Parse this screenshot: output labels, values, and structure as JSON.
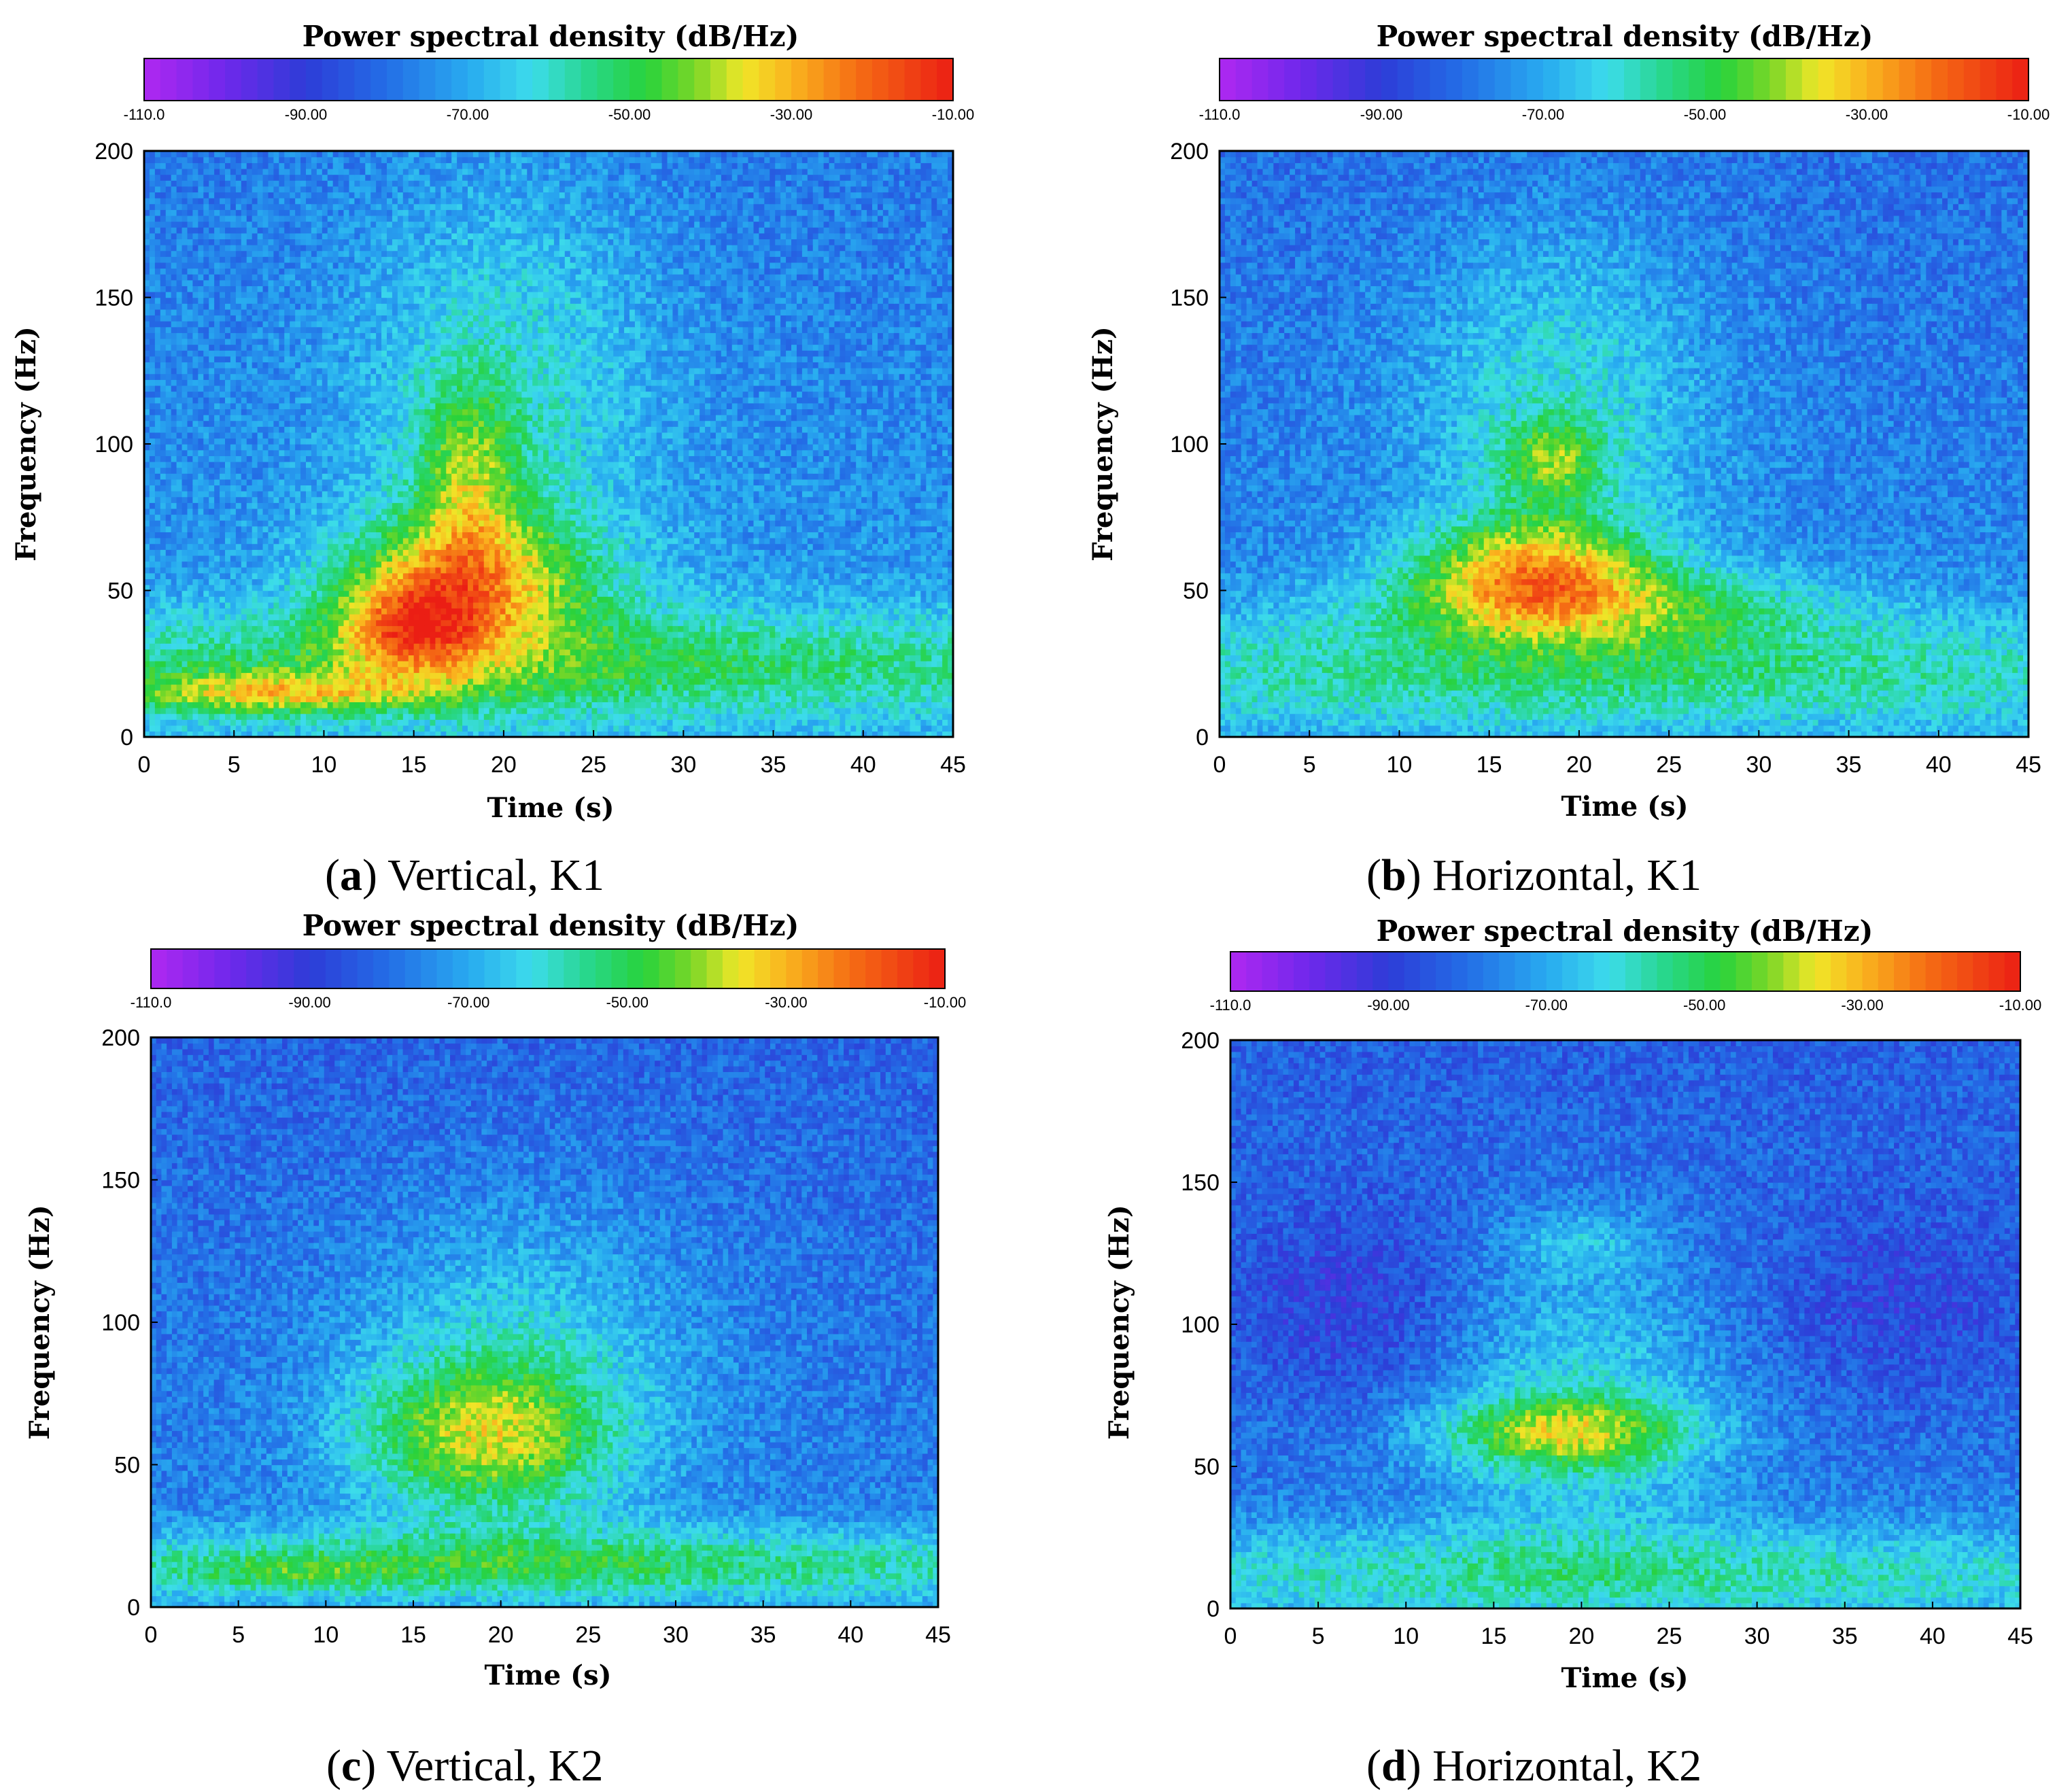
{
  "figure": {
    "panels": [
      {
        "letter": "a",
        "caption": ") Vertical, K1",
        "open": "("
      },
      {
        "letter": "b",
        "caption": ") Horizontal, K1",
        "open": "("
      },
      {
        "letter": "c",
        "caption": ") Vertical, K2",
        "open": "("
      },
      {
        "letter": "d",
        "caption": ") Horizontal, K2",
        "open": "("
      }
    ]
  },
  "chart_data": [
    {
      "type": "heatmap",
      "panel": "a",
      "title": "Power spectral density (dB/Hz)",
      "xlabel": "Time (s)",
      "ylabel": "Frequency (Hz)",
      "xlim": [
        0,
        45
      ],
      "ylim": [
        0,
        200
      ],
      "x_ticks": [
        "0",
        "5",
        "10",
        "15",
        "20",
        "25",
        "30",
        "35",
        "40",
        "45"
      ],
      "y_ticks": [
        "0",
        "50",
        "100",
        "150",
        "200"
      ],
      "colorbar": {
        "range": [
          -110,
          -10
        ],
        "ticks": [
          "-110.0",
          "-90.00",
          "-70.00",
          "-50.00",
          "-30.00",
          "-10.00"
        ]
      },
      "background_db": -72,
      "features": [
        {
          "t": 20,
          "f": 120,
          "sigma_t": 6,
          "sigma_f": 55,
          "peak_db": 15
        },
        {
          "t": 18,
          "f": 55,
          "sigma_t": 5,
          "sigma_f": 16,
          "peak_db": 34
        },
        {
          "t": 15,
          "f": 38,
          "sigma_t": 3,
          "sigma_f": 12,
          "peak_db": 30
        },
        {
          "t": 18,
          "f": 90,
          "sigma_t": 2,
          "sigma_f": 22,
          "peak_db": 22
        },
        {
          "t": 22.5,
          "f": 25,
          "sigma_t": 30,
          "sigma_f": 14,
          "peak_db": 22
        },
        {
          "t": 7,
          "f": 15,
          "sigma_t": 6,
          "sigma_f": 5,
          "peak_db": 26
        }
      ]
    },
    {
      "type": "heatmap",
      "panel": "b",
      "title": "Power spectral density (dB/Hz)",
      "xlabel": "Time (s)",
      "ylabel": "Frequency (Hz)",
      "xlim": [
        0,
        45
      ],
      "ylim": [
        0,
        200
      ],
      "x_ticks": [
        "0",
        "5",
        "10",
        "15",
        "20",
        "25",
        "30",
        "35",
        "40",
        "45"
      ],
      "y_ticks": [
        "0",
        "50",
        "100",
        "150",
        "200"
      ],
      "colorbar": {
        "range": [
          -110,
          -10
        ],
        "ticks": [
          "-110.0",
          "-90.00",
          "-70.00",
          "-50.00",
          "-30.00",
          "-10.00"
        ]
      },
      "background_db": -74,
      "features": [
        {
          "t": 19,
          "f": 115,
          "sigma_t": 6,
          "sigma_f": 45,
          "peak_db": 16
        },
        {
          "t": 17.5,
          "f": 58,
          "sigma_t": 4.5,
          "sigma_f": 13,
          "peak_db": 36
        },
        {
          "t": 18.5,
          "f": 95,
          "sigma_t": 2,
          "sigma_f": 10,
          "peak_db": 22
        },
        {
          "t": 22.5,
          "f": 22,
          "sigma_t": 30,
          "sigma_f": 14,
          "peak_db": 20
        },
        {
          "t": 21,
          "f": 45,
          "sigma_t": 9,
          "sigma_f": 10,
          "peak_db": 22
        }
      ]
    },
    {
      "type": "heatmap",
      "panel": "c",
      "title": "Power spectral density (dB/Hz)",
      "xlabel": "Time (s)",
      "ylabel": "Frequency (Hz)",
      "xlim": [
        0,
        45
      ],
      "ylim": [
        0,
        200
      ],
      "x_ticks": [
        "0",
        "5",
        "10",
        "15",
        "20",
        "25",
        "30",
        "35",
        "40",
        "45"
      ],
      "y_ticks": [
        "0",
        "50",
        "100",
        "150",
        "200"
      ],
      "colorbar": {
        "range": [
          -110,
          -10
        ],
        "ticks": [
          "-110.0",
          "-90.00",
          "-70.00",
          "-50.00",
          "-30.00",
          "-10.00"
        ]
      },
      "background_db": -76,
      "features": [
        {
          "t": 21,
          "f": 85,
          "sigma_t": 7,
          "sigma_f": 40,
          "peak_db": 16
        },
        {
          "t": 19,
          "f": 60,
          "sigma_t": 5,
          "sigma_f": 18,
          "peak_db": 30
        },
        {
          "t": 22.5,
          "f": 15,
          "sigma_t": 30,
          "sigma_f": 9,
          "peak_db": 24
        },
        {
          "t": 8,
          "f": 12,
          "sigma_t": 4,
          "sigma_f": 4,
          "peak_db": 10
        }
      ]
    },
    {
      "type": "heatmap",
      "panel": "d",
      "title": "Power spectral density (dB/Hz)",
      "xlabel": "Time (s)",
      "ylabel": "Frequency (Hz)",
      "xlim": [
        0,
        45
      ],
      "ylim": [
        0,
        200
      ],
      "x_ticks": [
        "0",
        "5",
        "10",
        "15",
        "20",
        "25",
        "30",
        "35",
        "40",
        "45"
      ],
      "y_ticks": [
        "0",
        "50",
        "100",
        "150",
        "200"
      ],
      "colorbar": {
        "range": [
          -110,
          -10
        ],
        "ticks": [
          "-110.0",
          "-90.00",
          "-70.00",
          "-50.00",
          "-30.00",
          "-10.00"
        ]
      },
      "background_db": -77,
      "features": [
        {
          "t": 20,
          "f": 75,
          "sigma_t": 6,
          "sigma_f": 38,
          "peak_db": 16
        },
        {
          "t": 19,
          "f": 62,
          "sigma_t": 5,
          "sigma_f": 9,
          "peak_db": 30
        },
        {
          "t": 20,
          "f": 130,
          "sigma_t": 3,
          "sigma_f": 8,
          "peak_db": 10
        },
        {
          "t": 22.5,
          "f": 12,
          "sigma_t": 30,
          "sigma_f": 12,
          "peak_db": 20
        },
        {
          "t": 7,
          "f": 105,
          "sigma_t": 5,
          "sigma_f": 25,
          "peak_db": -10
        },
        {
          "t": 38,
          "f": 105,
          "sigma_t": 6,
          "sigma_f": 25,
          "peak_db": -8
        }
      ]
    }
  ]
}
